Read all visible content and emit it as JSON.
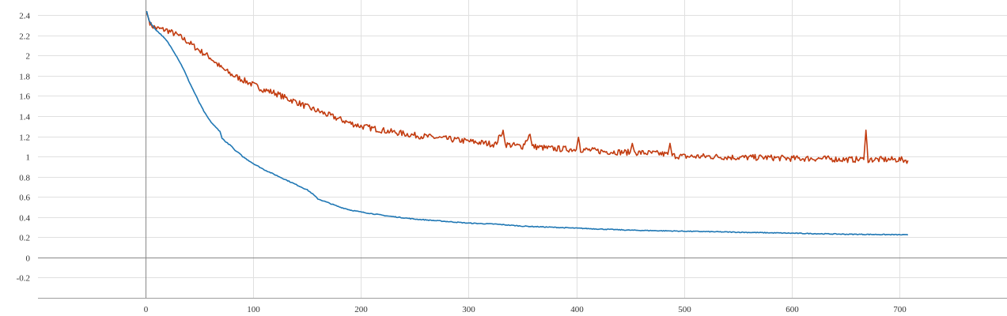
{
  "chart_data": {
    "type": "line",
    "xlim": [
      -100,
      800
    ],
    "ylim": [
      -0.4,
      2.55
    ],
    "grid": true,
    "x_ticks": [
      0,
      100,
      200,
      300,
      400,
      500,
      600,
      700
    ],
    "x_tick_labels": [
      "0",
      "100",
      "200",
      "300",
      "400",
      "500",
      "600",
      "700"
    ],
    "y_ticks": [
      -0.2,
      0,
      0.2,
      0.4,
      0.6,
      0.8,
      1,
      1.2,
      1.4,
      1.6,
      1.8,
      2,
      2.2,
      2.4
    ],
    "y_tick_labels": [
      "-0.2",
      "0",
      "0.2",
      "0.4",
      "0.6",
      "0.8",
      "1",
      "1.2",
      "1.4",
      "1.6",
      "1.8",
      "2",
      "2.2",
      "2.4"
    ],
    "series": [
      {
        "color": "#c23b0f",
        "x": [
          1,
          5,
          10,
          20,
          30,
          40,
          50,
          60,
          70,
          80,
          90,
          100,
          110,
          120,
          130,
          140,
          150,
          160,
          170,
          180,
          190,
          200,
          225,
          250,
          275,
          300,
          325,
          332,
          334,
          350,
          357,
          359,
          375,
          400,
          402,
          404,
          425,
          450,
          452,
          454,
          475,
          485,
          487,
          489,
          500,
          525,
          550,
          575,
          600,
          625,
          650,
          660,
          667,
          669,
          671,
          680,
          690,
          700,
          708
        ],
        "y": [
          2.42,
          2.3,
          2.27,
          2.25,
          2.2,
          2.13,
          2.05,
          1.98,
          1.88,
          1.81,
          1.76,
          1.71,
          1.66,
          1.63,
          1.58,
          1.54,
          1.49,
          1.45,
          1.41,
          1.37,
          1.33,
          1.3,
          1.25,
          1.21,
          1.18,
          1.15,
          1.12,
          1.26,
          1.12,
          1.1,
          1.22,
          1.1,
          1.08,
          1.07,
          1.19,
          1.07,
          1.05,
          1.04,
          1.13,
          1.04,
          1.03,
          1.02,
          1.13,
          1.01,
          1.0,
          1.0,
          0.99,
          0.99,
          0.98,
          0.98,
          0.97,
          0.97,
          0.97,
          1.26,
          0.97,
          0.97,
          0.97,
          0.97,
          0.96
        ]
      },
      {
        "color": "#1f77b4",
        "x": [
          1,
          3,
          6,
          10,
          15,
          20,
          25,
          30,
          35,
          40,
          45,
          50,
          55,
          60,
          65,
          69,
          71,
          75,
          80,
          83,
          86,
          90,
          100,
          110,
          120,
          130,
          140,
          150,
          155,
          160,
          165,
          170,
          180,
          190,
          200,
          225,
          250,
          275,
          300,
          325,
          350,
          375,
          400,
          425,
          450,
          475,
          500,
          525,
          550,
          575,
          600,
          625,
          650,
          675,
          700,
          708
        ],
        "y": [
          2.44,
          2.35,
          2.3,
          2.25,
          2.2,
          2.14,
          2.06,
          1.97,
          1.87,
          1.75,
          1.64,
          1.53,
          1.43,
          1.35,
          1.29,
          1.25,
          1.18,
          1.14,
          1.1,
          1.06,
          1.04,
          1.0,
          0.93,
          0.87,
          0.82,
          0.77,
          0.72,
          0.67,
          0.63,
          0.58,
          0.56,
          0.54,
          0.5,
          0.47,
          0.45,
          0.41,
          0.38,
          0.36,
          0.34,
          0.33,
          0.31,
          0.3,
          0.29,
          0.28,
          0.27,
          0.265,
          0.26,
          0.255,
          0.25,
          0.245,
          0.24,
          0.235,
          0.23,
          0.228,
          0.225,
          0.223
        ]
      }
    ]
  }
}
